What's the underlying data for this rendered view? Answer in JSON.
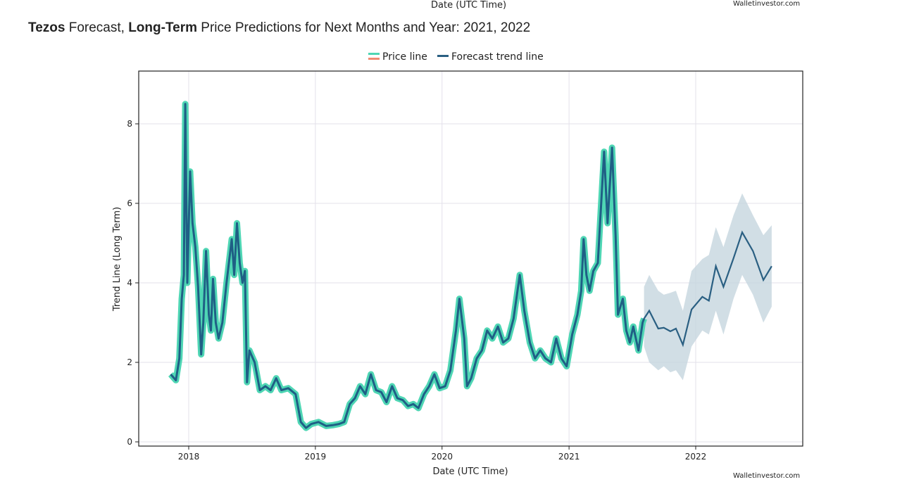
{
  "top_fragment": {
    "axis_label": "Date (UTC Time)",
    "watermark": "Walletinvestor.com"
  },
  "heading": {
    "part1_bold": "Tezos",
    "part2": " Forecast, ",
    "part3_bold": "Long-Term",
    "part4": " Price Predictions for Next Months and Year: 2021, 2022"
  },
  "chart_data": {
    "type": "line",
    "xlabel": "Date (UTC Time)",
    "ylabel": "Trend Line (Long Term)",
    "watermark": "Walletinvestor.com",
    "legend": {
      "placement": "top-center",
      "entries": [
        "Price line",
        "Forecast trend line"
      ]
    },
    "grid": true,
    "xlim": [
      "2017-08-15",
      "2022-10-25"
    ],
    "ylim": [
      -0.2,
      9.25
    ],
    "x_ticks": [
      "2018",
      "2019",
      "2020",
      "2021",
      "2022"
    ],
    "y_ticks": [
      0,
      2,
      4,
      6,
      8
    ],
    "colors": {
      "price_outer": "#4fd6b4",
      "price_inner": "#1f5f85",
      "price_legend_secondary": "#f08a72",
      "forecast": "#2a5f82",
      "band": "#c6d6df"
    },
    "series": [
      {
        "name": "Price line",
        "points": [
          [
            "2017-11-10",
            1.7
          ],
          [
            "2017-11-25",
            1.55
          ],
          [
            "2017-12-05",
            2.1
          ],
          [
            "2017-12-12",
            3.6
          ],
          [
            "2017-12-18",
            4.2
          ],
          [
            "2017-12-22",
            8.5
          ],
          [
            "2017-12-28",
            4.0
          ],
          [
            "2018-01-05",
            6.8
          ],
          [
            "2018-01-12",
            5.5
          ],
          [
            "2018-01-20",
            4.9
          ],
          [
            "2018-01-28",
            3.9
          ],
          [
            "2018-02-06",
            2.2
          ],
          [
            "2018-02-12",
            3.0
          ],
          [
            "2018-02-20",
            4.8
          ],
          [
            "2018-02-28",
            3.2
          ],
          [
            "2018-03-06",
            2.8
          ],
          [
            "2018-03-12",
            4.1
          ],
          [
            "2018-03-20",
            3.0
          ],
          [
            "2018-03-28",
            2.6
          ],
          [
            "2018-04-08",
            3.0
          ],
          [
            "2018-04-20",
            4.0
          ],
          [
            "2018-05-05",
            5.1
          ],
          [
            "2018-05-12",
            4.2
          ],
          [
            "2018-05-20",
            5.5
          ],
          [
            "2018-05-28",
            4.5
          ],
          [
            "2018-06-05",
            4.0
          ],
          [
            "2018-06-12",
            4.3
          ],
          [
            "2018-06-18",
            1.5
          ],
          [
            "2018-06-25",
            2.3
          ],
          [
            "2018-07-10",
            2.0
          ],
          [
            "2018-07-25",
            1.3
          ],
          [
            "2018-08-10",
            1.4
          ],
          [
            "2018-08-25",
            1.3
          ],
          [
            "2018-09-10",
            1.6
          ],
          [
            "2018-09-25",
            1.3
          ],
          [
            "2018-10-15",
            1.35
          ],
          [
            "2018-11-05",
            1.2
          ],
          [
            "2018-11-20",
            0.5
          ],
          [
            "2018-12-05",
            0.35
          ],
          [
            "2018-12-20",
            0.45
          ],
          [
            "2019-01-10",
            0.5
          ],
          [
            "2019-02-01",
            0.4
          ],
          [
            "2019-02-20",
            0.42
          ],
          [
            "2019-03-10",
            0.45
          ],
          [
            "2019-03-25",
            0.5
          ],
          [
            "2019-04-10",
            0.95
          ],
          [
            "2019-04-25",
            1.1
          ],
          [
            "2019-05-10",
            1.4
          ],
          [
            "2019-05-25",
            1.2
          ],
          [
            "2019-06-10",
            1.7
          ],
          [
            "2019-06-25",
            1.3
          ],
          [
            "2019-07-10",
            1.25
          ],
          [
            "2019-07-25",
            1.0
          ],
          [
            "2019-08-10",
            1.4
          ],
          [
            "2019-08-25",
            1.1
          ],
          [
            "2019-09-10",
            1.05
          ],
          [
            "2019-09-25",
            0.9
          ],
          [
            "2019-10-10",
            0.95
          ],
          [
            "2019-10-25",
            0.85
          ],
          [
            "2019-11-10",
            1.2
          ],
          [
            "2019-11-25",
            1.4
          ],
          [
            "2019-12-10",
            1.7
          ],
          [
            "2019-12-25",
            1.35
          ],
          [
            "2020-01-10",
            1.4
          ],
          [
            "2020-01-25",
            1.8
          ],
          [
            "2020-02-10",
            2.8
          ],
          [
            "2020-02-20",
            3.6
          ],
          [
            "2020-03-05",
            2.6
          ],
          [
            "2020-03-13",
            1.4
          ],
          [
            "2020-03-25",
            1.6
          ],
          [
            "2020-04-10",
            2.1
          ],
          [
            "2020-04-25",
            2.3
          ],
          [
            "2020-05-10",
            2.8
          ],
          [
            "2020-05-25",
            2.6
          ],
          [
            "2020-06-10",
            2.9
          ],
          [
            "2020-06-25",
            2.5
          ],
          [
            "2020-07-10",
            2.6
          ],
          [
            "2020-07-25",
            3.1
          ],
          [
            "2020-08-12",
            4.2
          ],
          [
            "2020-08-25",
            3.3
          ],
          [
            "2020-09-10",
            2.5
          ],
          [
            "2020-09-25",
            2.1
          ],
          [
            "2020-10-10",
            2.3
          ],
          [
            "2020-10-25",
            2.1
          ],
          [
            "2020-11-10",
            2.0
          ],
          [
            "2020-11-25",
            2.6
          ],
          [
            "2020-12-10",
            2.1
          ],
          [
            "2020-12-25",
            1.9
          ],
          [
            "2021-01-10",
            2.7
          ],
          [
            "2021-01-25",
            3.2
          ],
          [
            "2021-02-05",
            3.8
          ],
          [
            "2021-02-12",
            5.1
          ],
          [
            "2021-02-20",
            4.2
          ],
          [
            "2021-03-01",
            3.8
          ],
          [
            "2021-03-12",
            4.3
          ],
          [
            "2021-03-25",
            4.5
          ],
          [
            "2021-04-05",
            6.2
          ],
          [
            "2021-04-12",
            7.3
          ],
          [
            "2021-04-22",
            5.5
          ],
          [
            "2021-05-05",
            7.4
          ],
          [
            "2021-05-15",
            5.2
          ],
          [
            "2021-05-22",
            3.2
          ],
          [
            "2021-06-05",
            3.6
          ],
          [
            "2021-06-15",
            2.8
          ],
          [
            "2021-06-25",
            2.5
          ],
          [
            "2021-07-05",
            2.9
          ],
          [
            "2021-07-20",
            2.3
          ],
          [
            "2021-08-01",
            3.0
          ],
          [
            "2021-08-05",
            3.1
          ]
        ]
      },
      {
        "name": "Forecast trend line",
        "points_with_band": [
          [
            "2021-08-05",
            3.1,
            2.4,
            3.9
          ],
          [
            "2021-08-20",
            3.3,
            2.0,
            4.2
          ],
          [
            "2021-09-15",
            2.85,
            1.8,
            3.8
          ],
          [
            "2021-10-01",
            2.87,
            1.9,
            3.7
          ],
          [
            "2021-10-20",
            2.78,
            1.75,
            3.75
          ],
          [
            "2021-11-05",
            2.85,
            1.8,
            3.8
          ],
          [
            "2021-11-25",
            2.44,
            1.55,
            3.3
          ],
          [
            "2021-12-20",
            3.33,
            2.4,
            4.3
          ],
          [
            "2022-01-20",
            3.65,
            2.8,
            4.6
          ],
          [
            "2022-02-08",
            3.55,
            2.7,
            4.7
          ],
          [
            "2022-02-28",
            4.42,
            3.3,
            5.4
          ],
          [
            "2022-03-22",
            3.9,
            2.7,
            4.9
          ],
          [
            "2022-04-20",
            4.62,
            3.6,
            5.7
          ],
          [
            "2022-05-15",
            5.27,
            4.2,
            6.25
          ],
          [
            "2022-06-15",
            4.8,
            3.7,
            5.7
          ],
          [
            "2022-07-15",
            4.07,
            3.0,
            5.2
          ],
          [
            "2022-08-08",
            4.42,
            3.4,
            5.45
          ]
        ]
      }
    ]
  }
}
